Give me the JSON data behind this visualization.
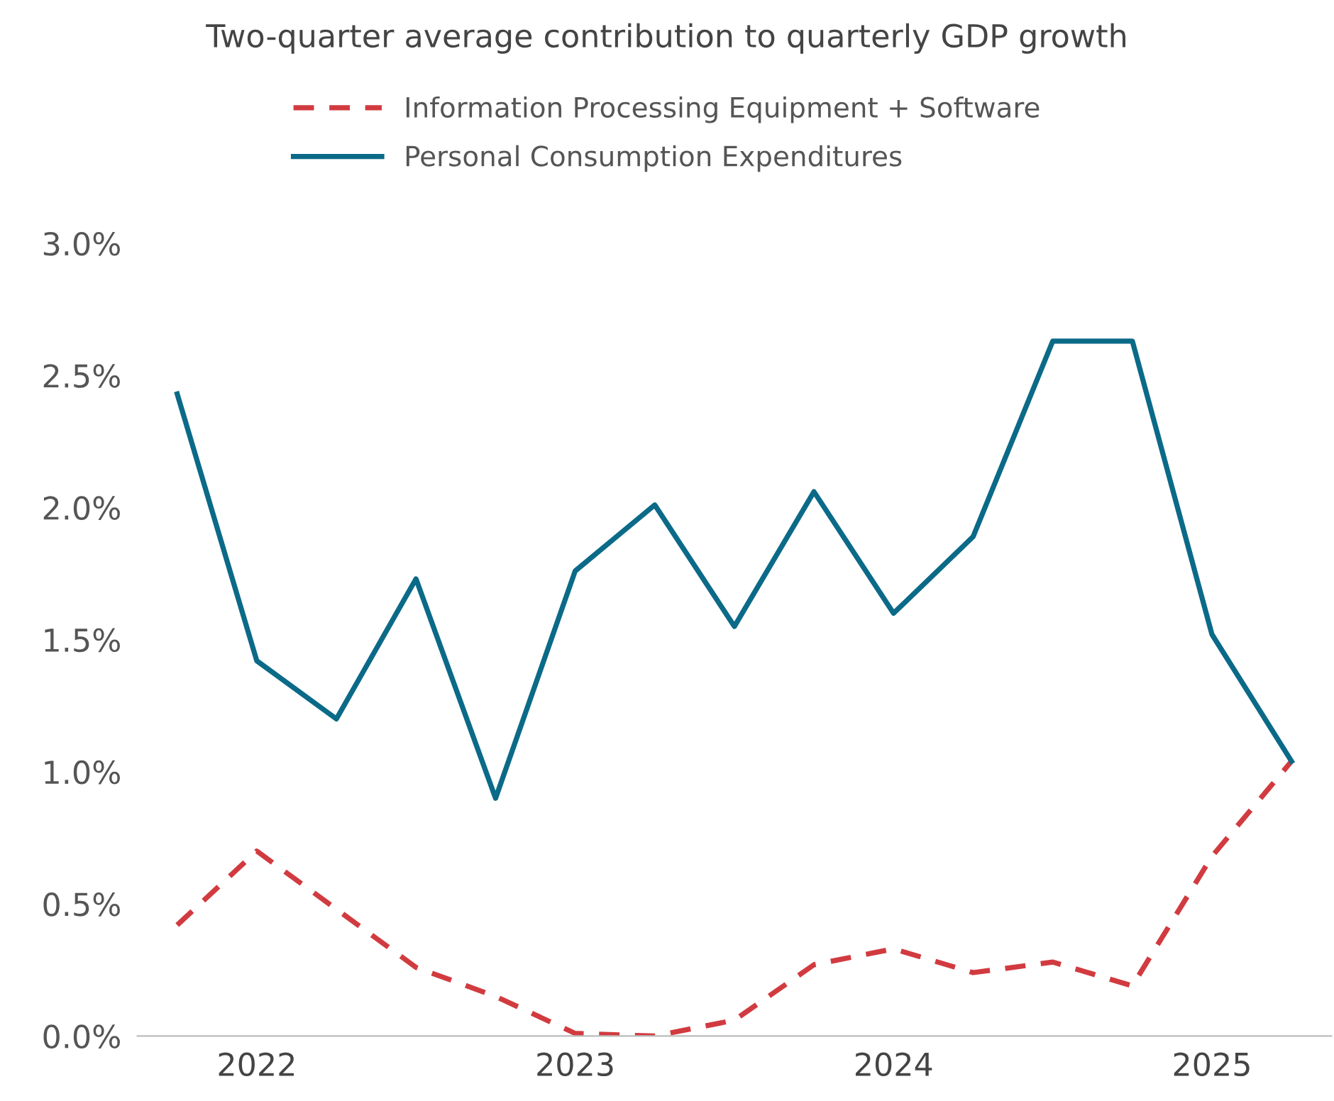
{
  "chart_data": {
    "type": "line",
    "title": "Two-quarter average contribution to quarterly GDP growth",
    "categories": [
      null,
      "2022",
      null,
      null,
      null,
      "2023",
      null,
      null,
      null,
      "2024",
      null,
      null,
      null,
      "2025",
      null
    ],
    "series": [
      {
        "name": "Information Processing Equipment + Software",
        "color": "#d13b40",
        "line_style": "dashed",
        "values": [
          0.42,
          0.7,
          0.48,
          0.26,
          0.15,
          0.01,
          0.0,
          0.06,
          0.27,
          0.33,
          0.24,
          0.28,
          0.19,
          0.68,
          1.04
        ]
      },
      {
        "name": "Personal Consumption Expenditures",
        "color": "#0b6a88",
        "line_style": "solid",
        "values": [
          2.43,
          1.42,
          1.2,
          1.73,
          0.9,
          1.76,
          2.01,
          1.55,
          2.06,
          1.6,
          1.89,
          2.63,
          2.63,
          1.52,
          1.04
        ]
      }
    ],
    "ylim": [
      0,
      3
    ],
    "yticks": [
      {
        "value": 0,
        "label": "0.0%"
      },
      {
        "value": 0.5,
        "label": "0.5%"
      },
      {
        "value": 1,
        "label": "1.0%"
      },
      {
        "value": 1.5,
        "label": "1.5%"
      },
      {
        "value": 2,
        "label": "2.0%"
      },
      {
        "value": 2.5,
        "label": "2.5%"
      },
      {
        "value": 3,
        "label": "3.0%"
      }
    ],
    "grid": false,
    "legend": "top",
    "marker": "none"
  }
}
